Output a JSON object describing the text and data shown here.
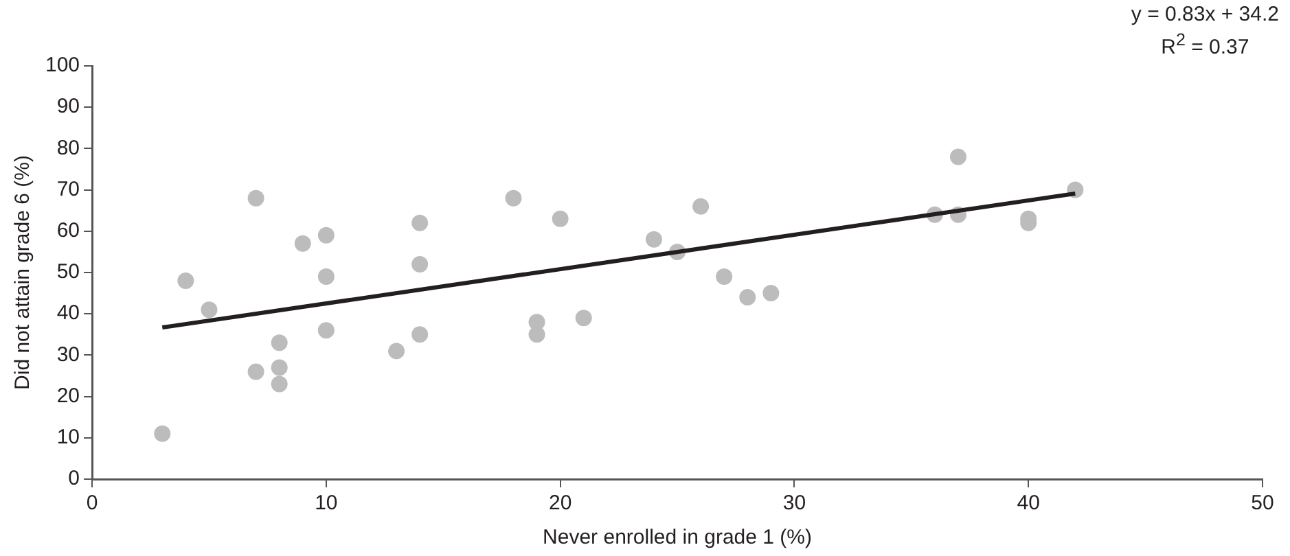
{
  "chart_data": {
    "type": "scatter",
    "xlabel": "Never enrolled in grade 1 (%)",
    "ylabel": "Did not attain grade 6 (%)",
    "annotations": [
      "y = 0.83x + 34.2",
      "R$^{2}$ = 0.37"
    ],
    "xlim": [
      0,
      50
    ],
    "xticks": [
      0,
      10,
      20,
      30,
      40,
      50
    ],
    "ylim": [
      0,
      100
    ],
    "yticks": [
      0,
      10,
      20,
      30,
      40,
      50,
      60,
      70,
      80,
      90,
      100
    ],
    "grid": false,
    "series": [
      {
        "color": "#bcbcbc",
        "marker": "circle",
        "x": [
          3,
          4,
          5,
          7,
          7,
          8,
          8,
          8,
          9,
          10,
          10,
          10,
          13,
          14,
          14,
          14,
          18,
          19,
          19,
          20,
          21,
          24,
          25,
          26,
          27,
          28,
          29,
          36,
          37,
          37,
          40,
          40,
          42
        ],
        "values": [
          11,
          48,
          41,
          68,
          26,
          33,
          27,
          23,
          57,
          59,
          49,
          36,
          31,
          62,
          52,
          35,
          68,
          38,
          35,
          63,
          39,
          58,
          55,
          66,
          49,
          44,
          45,
          64,
          78,
          64,
          63,
          62,
          70
        ]
      },
      {
        "type": "line",
        "color": "#231f20",
        "line_style": "solid",
        "marker": "none",
        "x": [
          3,
          42
        ],
        "values": [
          36.7,
          69.1
        ]
      }
    ]
  }
}
